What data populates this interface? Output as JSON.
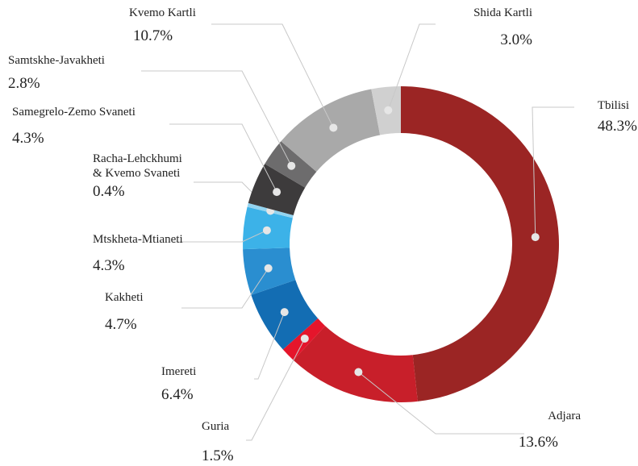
{
  "chart_data": {
    "type": "donut",
    "categories": [
      "Tbilisi",
      "Adjara",
      "Guria",
      "Imereti",
      "Kakheti",
      "Mtskheta-Mtianeti",
      "Racha-Lehckhumi\n& Kvemo Svaneti",
      "Samegrelo-Zemo Svaneti",
      "Samtskhe-Javakheti",
      "Kvemo Kartli",
      "Shida Kartli"
    ],
    "values": [
      48.3,
      13.6,
      1.5,
      6.4,
      4.7,
      4.3,
      0.4,
      4.3,
      2.8,
      10.7,
      3.0
    ],
    "value_labels": [
      "48.3%",
      "13.6%",
      "1.5%",
      "6.4%",
      "4.7%",
      "4.3%",
      "0.4%",
      "4.3%",
      "2.8%",
      "10.7%",
      "3.0%"
    ],
    "colors": [
      "#9b2524",
      "#c81f2a",
      "#e5152b",
      "#136db3",
      "#2a8ed0",
      "#3cb2e8",
      "#93d4f0",
      "#3d3b3c",
      "#6d6c6d",
      "#a9a9a9",
      "#d0d0d0"
    ]
  }
}
